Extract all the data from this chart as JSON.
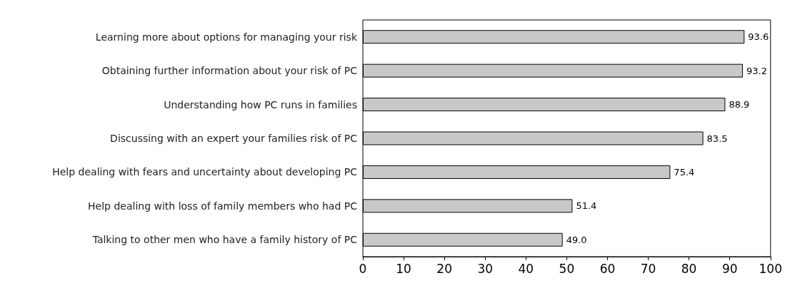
{
  "chart_data": {
    "type": "bar",
    "orientation": "horizontal",
    "categories": [
      "Learning more about options for managing your risk",
      "Obtaining further information about your risk of PC",
      "Understanding how PC runs in families",
      "Discussing with an expert your families risk of PC",
      "Help dealing with fears and uncertainty about developing PC",
      "Help dealing with loss of family members who had PC",
      "Talking to other men who have a family history of PC"
    ],
    "values": [
      93.6,
      93.2,
      88.9,
      83.5,
      75.4,
      51.4,
      49.0
    ],
    "value_labels": [
      "93.6",
      "93.2",
      "88.9",
      "83.5",
      "75.4",
      "51.4",
      "49.0"
    ],
    "color": "#c8c8c8",
    "xlim": [
      0,
      100
    ],
    "xticks": [
      0,
      10,
      20,
      30,
      40,
      50,
      60,
      70,
      80,
      90,
      100
    ],
    "grid": false
  }
}
